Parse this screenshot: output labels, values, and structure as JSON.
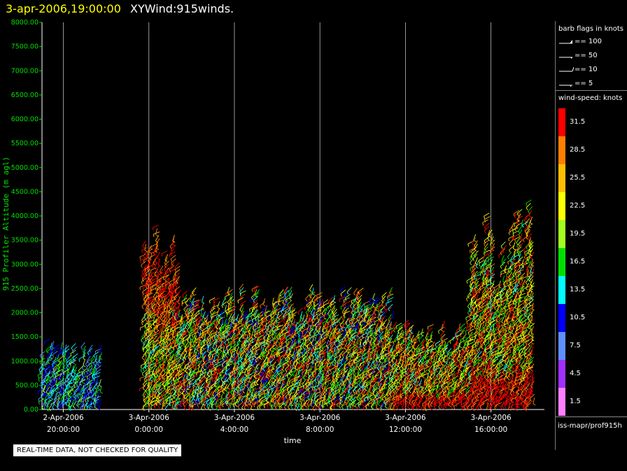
{
  "header": {
    "timestamp": "3-apr-2006,19:00:00",
    "product": "XYWind:915winds."
  },
  "chart_data": {
    "type": "scatter",
    "ylabel": "915 Profiler Altitude (m agl)",
    "xlabel": "time",
    "ylim": [
      0,
      8000
    ],
    "yticks": [
      "0.00",
      "500.00",
      "1000.00",
      "1500.00",
      "2000.00",
      "2500.00",
      "3000.00",
      "3500.00",
      "4000.00",
      "4500.00",
      "5000.00",
      "5500.00",
      "6000.00",
      "6500.00",
      "7000.00",
      "7500.00",
      "8000.00"
    ],
    "xticks": [
      {
        "line1": "2-Apr-2006",
        "line2": "20:00:00"
      },
      {
        "line1": "3-Apr-2006",
        "line2": "0:00:00"
      },
      {
        "line1": "3-Apr-2006",
        "line2": "4:00:00"
      },
      {
        "line1": "3-Apr-2006",
        "line2": "8:00:00"
      },
      {
        "line1": "3-Apr-2006",
        "line2": "12:00:00"
      },
      {
        "line1": "3-Apr-2006",
        "line2": "16:00:00"
      }
    ],
    "xrange_hours": [
      -1,
      22.5
    ],
    "grid": true,
    "series": [
      {
        "start_hour": -0.9,
        "end_hour": 1.8,
        "max_alt": 1500,
        "profile": "low-weak"
      },
      {
        "start_hour": 3.9,
        "end_hour": 5.5,
        "max_alt": 4000,
        "profile": "tall-strong"
      },
      {
        "start_hour": 5.5,
        "end_hour": 15.5,
        "max_alt": 2600,
        "profile": "mid-mixed"
      },
      {
        "start_hour": 15.5,
        "end_hour": 22.0,
        "max_alt": 4400,
        "profile": "strong-late"
      }
    ]
  },
  "legend": {
    "barb_title": "barb flags in knots",
    "barbs": [
      {
        "label": "== 100",
        "kind": "pennant"
      },
      {
        "label": "== 50",
        "kind": "flag"
      },
      {
        "label": "== 10",
        "kind": "full"
      },
      {
        "label": "== 5",
        "kind": "half"
      }
    ],
    "speed_title": "wind-speed: knots",
    "speed_bins": [
      {
        "label": "31.5",
        "color": "#ff0000"
      },
      {
        "label": "28.5",
        "color": "#ff7f00"
      },
      {
        "label": "25.5",
        "color": "#ffbf00"
      },
      {
        "label": "22.5",
        "color": "#ffff00"
      },
      {
        "label": "19.5",
        "color": "#a0ff20"
      },
      {
        "label": "16.5",
        "color": "#00e000"
      },
      {
        "label": "13.5",
        "color": "#00ffff"
      },
      {
        "label": "10.5",
        "color": "#0000ff"
      },
      {
        "label": "7.5",
        "color": "#5f8fff"
      },
      {
        "label": "4.5",
        "color": "#9f30ff"
      },
      {
        "label": "1.5",
        "color": "#ff80ff"
      }
    ],
    "source": "iss-mapr/prof915h"
  },
  "footer": {
    "warning": "REAL-TIME DATA, NOT CHECKED FOR QUALITY"
  }
}
